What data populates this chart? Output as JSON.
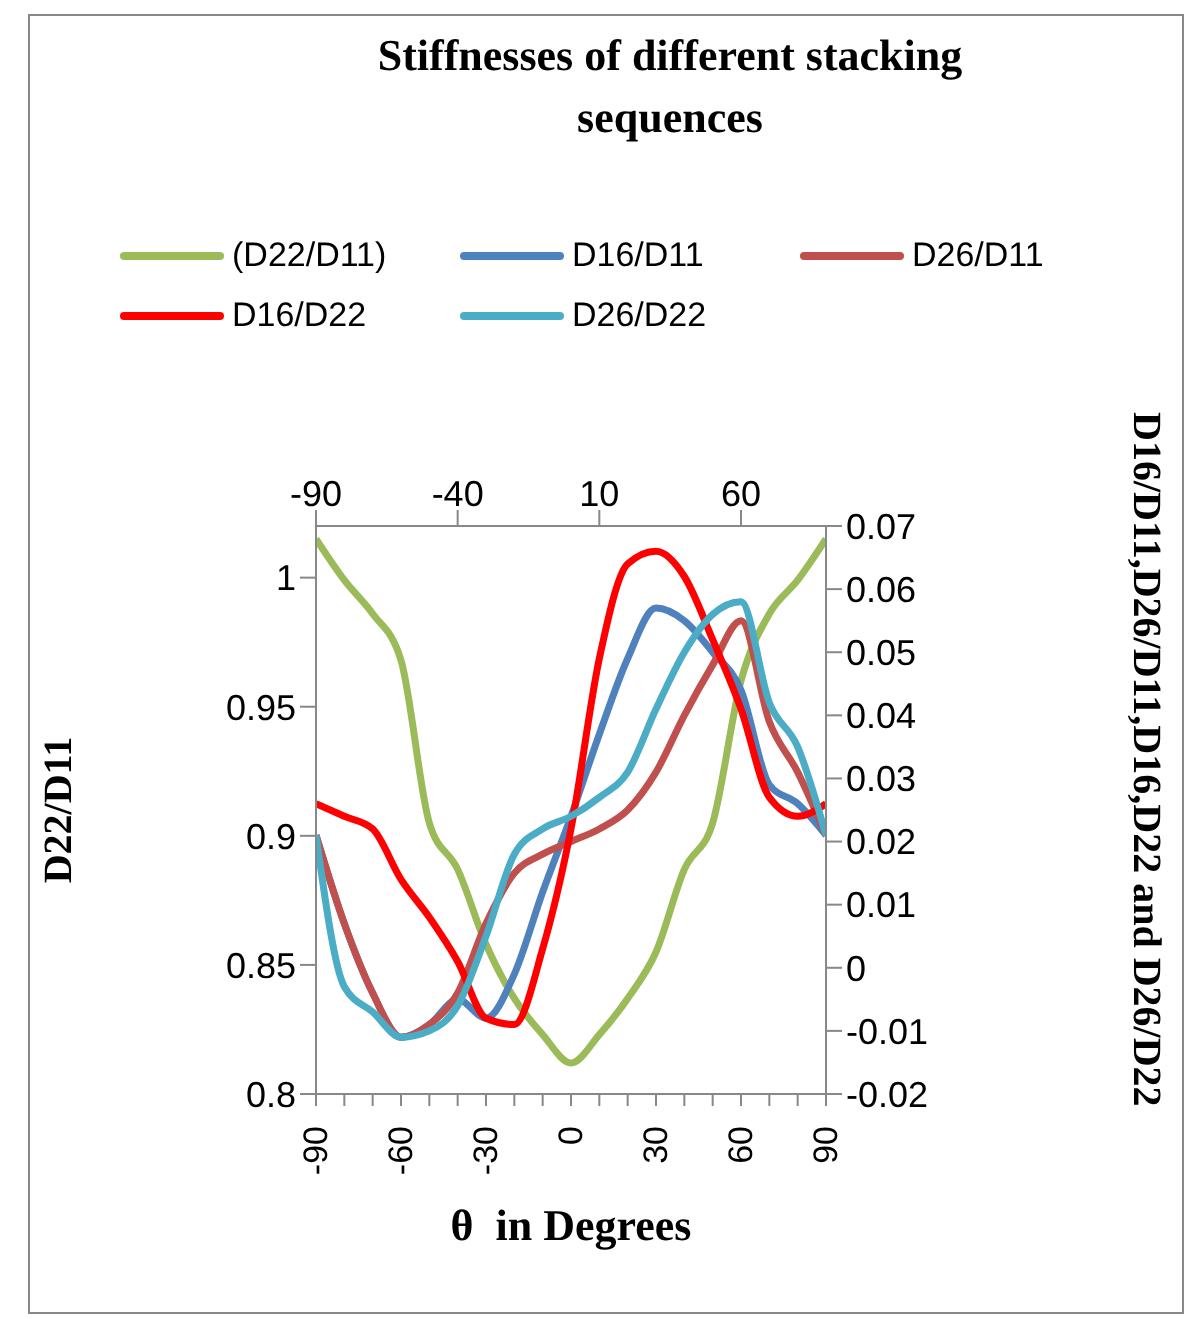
{
  "chart_data": {
    "type": "line",
    "title": "Stiffnesses of different stacking sequences",
    "xlabel": "θ  in Degrees",
    "ylabel": "D22/D11",
    "y2label": "D16/D11,D26/D11,D16,D22 and D26/D22",
    "x": [
      -90,
      -80,
      -70,
      -60,
      -50,
      -40,
      -30,
      -20,
      -10,
      0,
      10,
      20,
      30,
      40,
      50,
      60,
      70,
      80,
      90
    ],
    "series": [
      {
        "name": "(D22/D11)",
        "color": "#9bbb59",
        "values": [
          1.015,
          0.999,
          0.986,
          0.968,
          0.905,
          0.887,
          0.858,
          0.837,
          0.823,
          0.812,
          0.823,
          0.837,
          0.855,
          0.887,
          0.905,
          0.96,
          0.986,
          0.999,
          1.015
        ]
      },
      {
        "name": "D16/D11",
        "color": "#4f81bd",
        "axis": "y2",
        "values": [
          0.021,
          0.007,
          -0.004,
          -0.011,
          -0.009,
          -0.005,
          -0.008,
          -0.001,
          0.012,
          0.024,
          0.037,
          0.049,
          0.057,
          0.055,
          0.05,
          0.044,
          0.029,
          0.026,
          0.021
        ]
      },
      {
        "name": "D26/D11",
        "color": "#c0504d",
        "axis": "y2",
        "values": [
          0.021,
          0.007,
          -0.004,
          -0.011,
          -0.009,
          -0.004,
          0.007,
          0.015,
          0.018,
          0.02,
          0.022,
          0.025,
          0.031,
          0.04,
          0.048,
          0.055,
          0.039,
          0.031,
          0.021
        ]
      },
      {
        "name": "D16/D22",
        "color": "#ff0000",
        "axis": "y2",
        "values": [
          0.026,
          0.024,
          0.022,
          0.014,
          0.008,
          0.001,
          -0.008,
          -0.009,
          0.003,
          0.022,
          0.049,
          0.064,
          0.066,
          0.062,
          0.052,
          0.041,
          0.027,
          0.024,
          0.026
        ]
      },
      {
        "name": "D26/D22",
        "color": "#4bacc6",
        "axis": "y2",
        "values": [
          0.021,
          -0.003,
          -0.007,
          -0.011,
          -0.01,
          -0.006,
          0.005,
          0.018,
          0.022,
          0.024,
          0.027,
          0.031,
          0.041,
          0.05,
          0.056,
          0.058,
          0.042,
          0.035,
          0.021
        ]
      }
    ],
    "xlim": [
      -90,
      90
    ],
    "xticks": [
      -90,
      {
        "value": -80,
        "label": null
      },
      {
        "value": -70,
        "label": null
      },
      -60,
      {
        "value": -50,
        "label": null
      },
      {
        "value": -40,
        "label": null
      },
      -30,
      {
        "value": -20,
        "label": null
      },
      {
        "value": -10,
        "label": null
      },
      0,
      {
        "value": 10,
        "label": null
      },
      {
        "value": 20,
        "label": null
      },
      30,
      {
        "value": 40,
        "label": null
      },
      {
        "value": 50,
        "label": null
      },
      60,
      {
        "value": 70,
        "label": null
      },
      {
        "value": 80,
        "label": null
      },
      90
    ],
    "x2lim": [
      -90,
      90
    ],
    "x2ticks": [
      -90,
      -40,
      10,
      60
    ],
    "ylim": [
      0.8,
      1.02
    ],
    "yticks": [
      0.8,
      0.85,
      0.9,
      0.95,
      1
    ],
    "y2lim": [
      -0.02,
      0.07
    ],
    "y2ticks": [
      -0.02,
      -0.01,
      0,
      0.01,
      0.02,
      0.03,
      0.04,
      0.05,
      0.06,
      0.07
    ],
    "legend": "top",
    "marker": "none",
    "line_style": "solid"
  }
}
